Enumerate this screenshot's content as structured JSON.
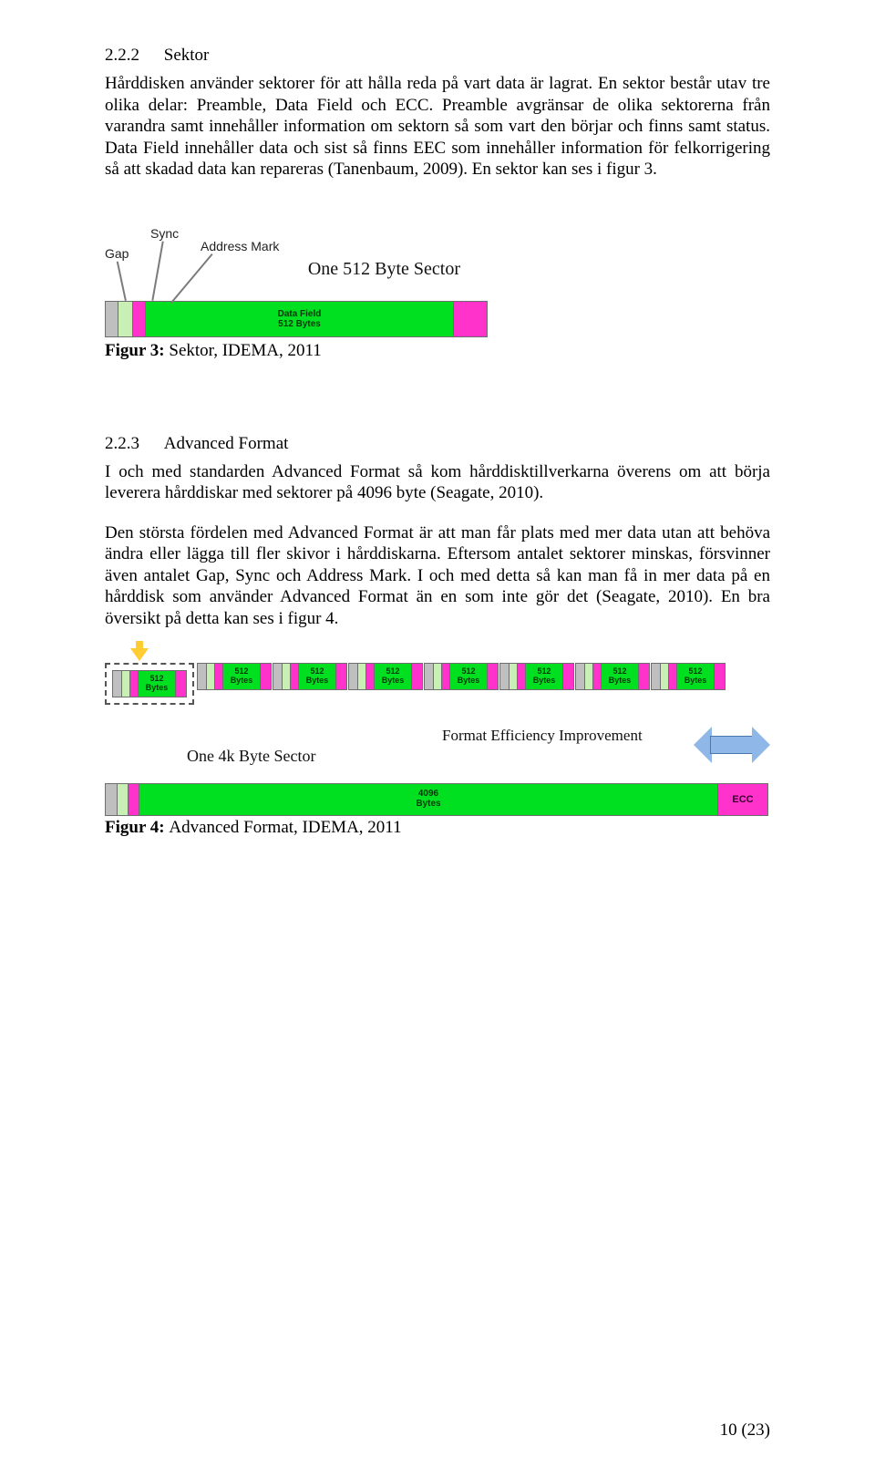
{
  "section1": {
    "num": "2.2.2",
    "title": "Sektor",
    "para": "Hårddisken använder sektorer för att hålla reda på vart data är lagrat. En sektor består utav tre olika delar: Preamble, Data Field och ECC. Preamble avgränsar de olika sektorerna från varandra samt innehåller information om sektorn så som vart den börjar och finns samt status. Data Field innehåller data och sist så finns EEC som innehåller information för felkorrigering så att skadad data kan repareras (Tanenbaum, 2009). En sektor kan ses i figur 3."
  },
  "fig3": {
    "labels": {
      "gap": "Gap",
      "sync": "Sync",
      "addr": "Address Mark"
    },
    "title": "One 512 Byte Sector",
    "data_line1": "Data Field",
    "data_line2": "512 Bytes",
    "colors": {
      "gap": "#bfbfbf",
      "sync": "#c8f0b4",
      "addr": "#ff33cc",
      "data": "#00e020",
      "ecc": "#ff33cc",
      "border": "#6e6e6e"
    },
    "caption_bold": "Figur 3: ",
    "caption_rest": "Sektor, IDEMA, 2011"
  },
  "section2": {
    "num": "2.2.3",
    "title": "Advanced Format",
    "para1": "I och med standarden Advanced Format så kom hårddisktillverkarna överens om att börja leverera hårddiskar med sektorer på 4096 byte (Seagate, 2010).",
    "para2": "Den största fördelen med Advanced Format är att man får plats med mer data utan att behöva ändra eller lägga till fler skivor i hårddiskarna. Eftersom antalet sektorer minskas, försvinner även antalet Gap, Sync och Address Mark. I och med detta så kan man få in mer data på en hårddisk som använder Advanced Format än en som inte gör det (Seagate, 2010). En bra översikt på detta kan ses i figur 4."
  },
  "fig4": {
    "cell_line1": "512",
    "cell_line2": "Bytes",
    "n_cells": 8,
    "onek": "One 4k Byte Sector",
    "eff": "Format Efficiency Improvement",
    "big_line1": "4096",
    "big_line2": "Bytes",
    "ecc_label": "ECC",
    "caption_bold": "Figur 4: ",
    "caption_rest": "Advanced Format, IDEMA, 2011"
  },
  "footer": "10 (23)"
}
